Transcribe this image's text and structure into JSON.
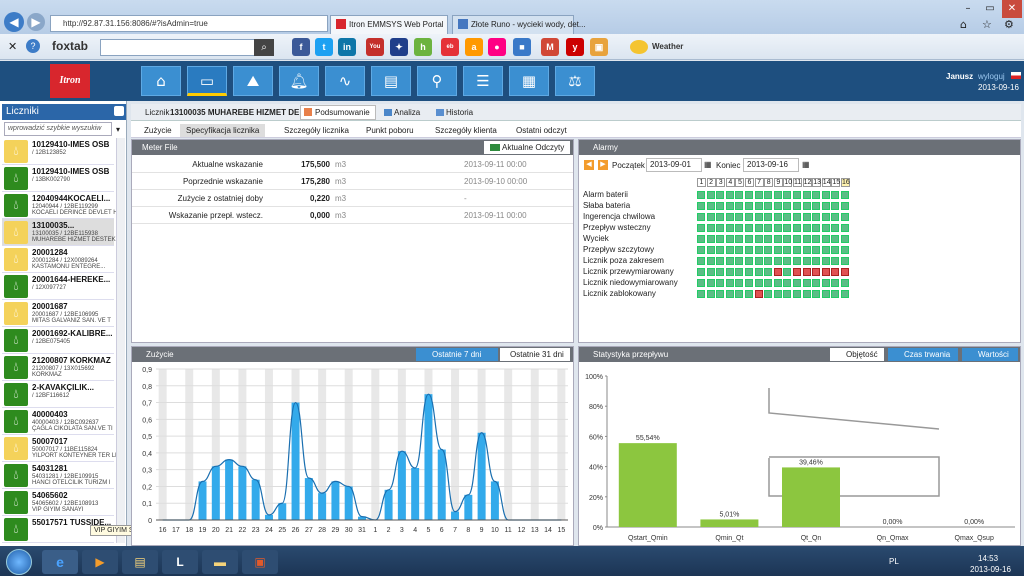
{
  "browser": {
    "address": "http://92.87.31.156:8086/#?isAdmin=true",
    "tabs": [
      "Itron EMMSYS Web Portal",
      "Złote Runo - wycieki wody, det..."
    ],
    "toolbar_brand": "foxtab",
    "weather_label": "Weather"
  },
  "app": {
    "user": "Janusz",
    "logout": "wyloguj",
    "date": "2013-09-16",
    "logo": "Itron",
    "nav_icons": [
      "home-icon",
      "meter-icon",
      "chart-icon",
      "bell-icon",
      "pulse-icon",
      "cards-icon",
      "map-pin-icon",
      "report-icon",
      "document-icon",
      "scales-icon"
    ]
  },
  "sidebar": {
    "title": "Liczniki",
    "search_placeholder": "wprowadzić szybkie wyszukiw",
    "items": [
      {
        "title": "10129410-IMES OSB",
        "l1": "/ 12B123852",
        "l2": "",
        "color": "y"
      },
      {
        "title": "10129410-IMES OSB",
        "l1": "/ 13BK002790",
        "l2": "",
        "color": "g"
      },
      {
        "title": "12040944KOCAELI...",
        "l1": "12040944 / 12BE119299",
        "l2": "KOCAELI DERINCE DEVLET H",
        "color": "g"
      },
      {
        "title": "13100035...",
        "l1": "13100035 / 12BE115938",
        "l2": "MUHAREBE HIZMET DESTEK",
        "color": "y",
        "selected": true
      },
      {
        "title": "20001284",
        "l1": "20001284 / 12X0089264",
        "l2": "KASTAMONU ENTEGRE...",
        "color": "y"
      },
      {
        "title": "20001644-HEREKE...",
        "l1": "/ 12X097727",
        "l2": "",
        "color": "g"
      },
      {
        "title": "20001687",
        "l1": "20001687 / 12BE106995",
        "l2": "MITAS GALVANIZ SAN. VE T",
        "color": "y"
      },
      {
        "title": "20001692-KALIBRE...",
        "l1": "/ 12BE075405",
        "l2": "",
        "color": "g"
      },
      {
        "title": "21200807 KORKMAZ",
        "l1": "21200807 / 13X015692",
        "l2": "KORKMAZ",
        "color": "g"
      },
      {
        "title": "2-KAVAKÇILIK...",
        "l1": "/ 12BF116612",
        "l2": "",
        "color": "g"
      },
      {
        "title": "40000403",
        "l1": "40000403 / 12BC092637",
        "l2": "ÇAĞLA CIKOLATA SAN.VE TI",
        "color": "g"
      },
      {
        "title": "50007017",
        "l1": "50007017 / 11BE115824",
        "l2": "YILPORT KONTEYNER TER LI",
        "color": "y"
      },
      {
        "title": "54031281",
        "l1": "54031281 / 12BE109915",
        "l2": "HANCI OTELCILIK TURIZM I",
        "color": "g"
      },
      {
        "title": "54065602",
        "l1": "54065602 / 12BE108913",
        "l2": "VIP GIYIM SANAYI",
        "color": "g"
      },
      {
        "title": "55017571 TUSSIDE...",
        "l1": "",
        "l2": "",
        "color": "g"
      }
    ],
    "tooltip": "VIP GIYIM SANAYI"
  },
  "meter": {
    "label": "Licznik",
    "name": "13100035 MUHAREBE HIZMET DE",
    "tabs": [
      "Podsumowanie",
      "Analiza",
      "Historia"
    ]
  },
  "subtabs": [
    "Zużycie",
    "Specyfikacja licznika",
    "Szczegóły licznika",
    "Punkt poboru",
    "Szczegóły klienta",
    "Ostatni odczyt"
  ],
  "meterfile": {
    "title": "Meter File",
    "button": "Aktualne Odczyty",
    "rows": [
      {
        "label": "Aktualne wskazanie",
        "value": "175,500",
        "unit": "m3",
        "date": "2013-09-11 00:00"
      },
      {
        "label": "Poprzednie wskazanie",
        "value": "175,280",
        "unit": "m3",
        "date": "2013-09-10 00:00"
      },
      {
        "label": "Zużycie z ostatniej doby",
        "value": "0,220",
        "unit": "m3",
        "date": "-"
      },
      {
        "label": "Wskazanie przepł. wstecz.",
        "value": "0,000",
        "unit": "m3",
        "date": "2013-09-11 00:00"
      }
    ]
  },
  "alarms": {
    "title": "Alarmy",
    "start_label": "Początek",
    "start": "2013-09-01",
    "end_label": "Koniec",
    "end": "2013-09-16",
    "days": [
      "1",
      "2",
      "3",
      "4",
      "5",
      "6",
      "7",
      "8",
      "9",
      "10",
      "11",
      "12",
      "13",
      "14",
      "15",
      "16"
    ],
    "rows": [
      "Alarm baterii",
      "Słaba bateria",
      "Ingerencja chwilowa",
      "Przepływ wsteczny",
      "Wyciek",
      "Przepływ szczytowy",
      "Licznik poza zakresem",
      "Licznik przewymiarowany",
      "Licznik niedowymiarowany",
      "Licznik zablokowany"
    ],
    "red": [
      [
        7,
        9
      ],
      [
        7,
        11
      ],
      [
        7,
        12
      ],
      [
        7,
        13
      ],
      [
        7,
        14
      ],
      [
        7,
        15
      ],
      [
        7,
        16
      ],
      [
        9,
        7
      ]
    ]
  },
  "usage": {
    "title": "Zużycie",
    "btn_a": "Ostatnie 7 dni",
    "btn_b": "Ostatnie 31 dni"
  },
  "flow": {
    "title": "Statystyka przepływu",
    "btn_a": "Objętość",
    "btn_b": "Czas trwania",
    "btn_c": "Wartości"
  },
  "taskbar": {
    "lang": "PL",
    "time": "14:53",
    "date": "2013-09-16"
  },
  "chart_data": [
    {
      "type": "bar",
      "title": "",
      "ylim": [
        0,
        0.9
      ],
      "yticks": [
        "0",
        "0,1",
        "0,2",
        "0,3",
        "0,4",
        "0,5",
        "0,6",
        "0,7",
        "0,8",
        "0,9"
      ],
      "categories": [
        "16",
        "17",
        "18",
        "19",
        "20",
        "21",
        "22",
        "23",
        "24",
        "25",
        "26",
        "27",
        "28",
        "29",
        "30",
        "31",
        "1",
        "2",
        "3",
        "4",
        "5",
        "6",
        "7",
        "8",
        "9",
        "10",
        "11",
        "12",
        "13",
        "14",
        "15"
      ],
      "values": [
        0,
        0,
        0,
        0.23,
        0.32,
        0.36,
        0.32,
        0.24,
        0.03,
        0.1,
        0.7,
        0.25,
        0.16,
        0.23,
        0.2,
        0.02,
        0,
        0.18,
        0.41,
        0.31,
        0.75,
        0.42,
        0.05,
        0.15,
        0.52,
        0.23,
        0,
        0,
        0,
        0,
        0
      ]
    },
    {
      "type": "bar",
      "title": "",
      "ylim": [
        0,
        100
      ],
      "yticks": [
        "0%",
        "20%",
        "40%",
        "60%",
        "80%",
        "100%"
      ],
      "categories": [
        "Qstart_Qmin",
        "Qmin_Qt",
        "Qt_Qn",
        "Qn_Qmax",
        "Qmax_Qsup"
      ],
      "values": [
        55.54,
        5.01,
        39.46,
        0,
        0
      ],
      "labels": [
        "55,54%",
        "5,01%",
        "39,46%",
        "0,00%",
        "0,00%"
      ]
    }
  ]
}
